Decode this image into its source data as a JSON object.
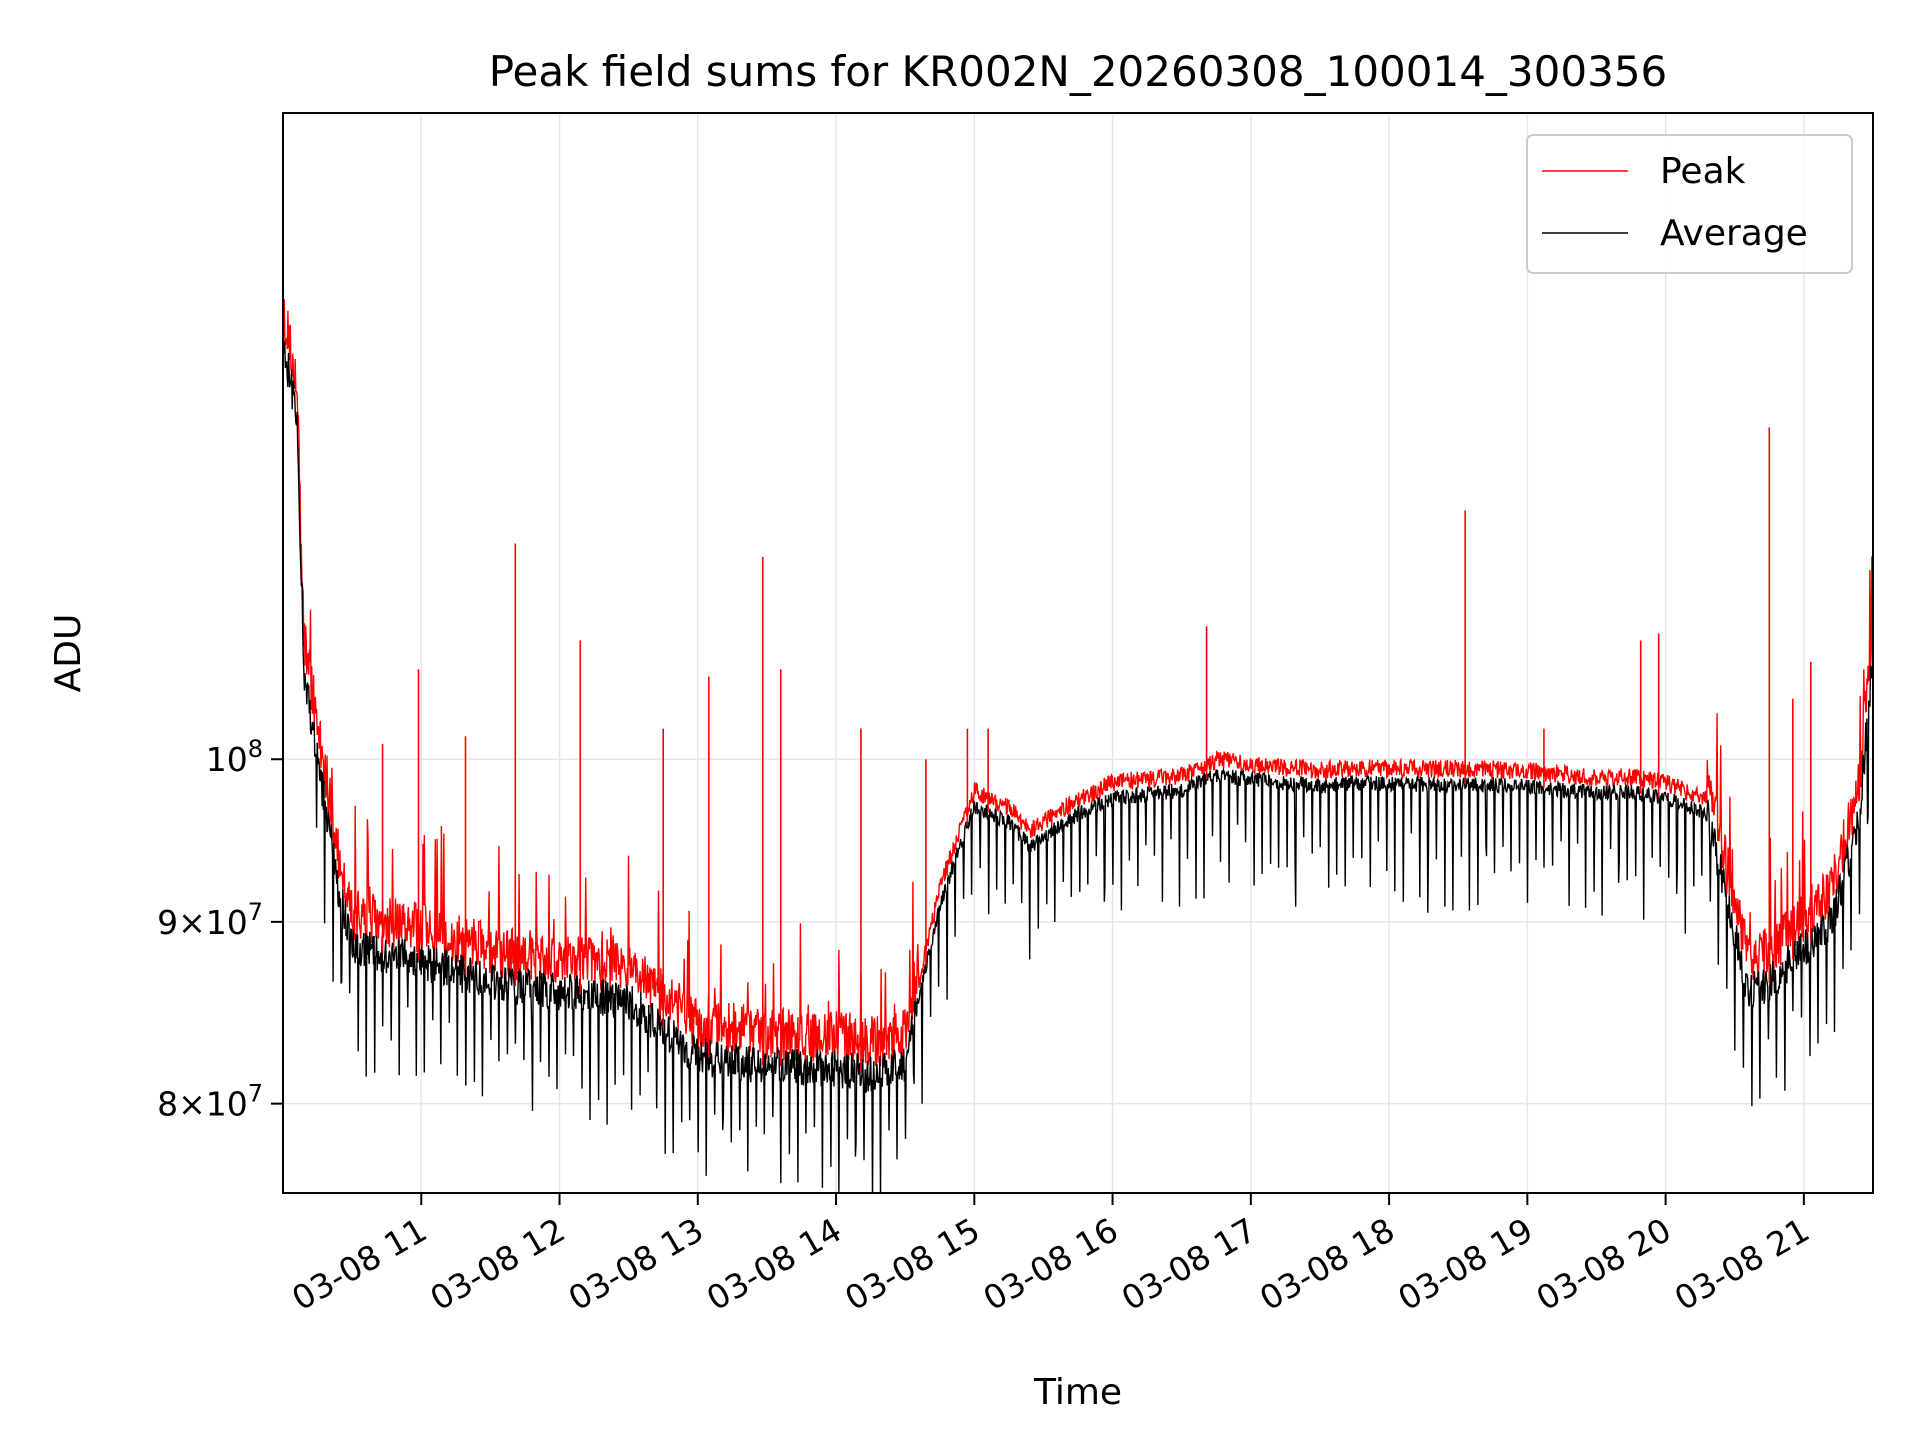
{
  "chart_data": {
    "type": "line",
    "title": "Peak field sums for KR002N_20260308_100014_300356",
    "xlabel": "Time",
    "ylabel": "ADU",
    "yscale": "log",
    "ylim": [
      75500000,
      152000000
    ],
    "xlim_hours": [
      10.0,
      21.5
    ],
    "grid": true,
    "x_ticks": [
      {
        "hour": 11,
        "label": "03-08 11"
      },
      {
        "hour": 12,
        "label": "03-08 12"
      },
      {
        "hour": 13,
        "label": "03-08 13"
      },
      {
        "hour": 14,
        "label": "03-08 14"
      },
      {
        "hour": 15,
        "label": "03-08 15"
      },
      {
        "hour": 16,
        "label": "03-08 16"
      },
      {
        "hour": 17,
        "label": "03-08 17"
      },
      {
        "hour": 18,
        "label": "03-08 18"
      },
      {
        "hour": 19,
        "label": "03-08 19"
      },
      {
        "hour": 20,
        "label": "03-08 20"
      },
      {
        "hour": 21,
        "label": "03-08 21"
      }
    ],
    "y_ticks": [
      {
        "value": 80000000,
        "mantissa": "8",
        "exp": "7",
        "sep": "×10"
      },
      {
        "value": 90000000,
        "mantissa": "9",
        "exp": "7",
        "sep": "×10"
      },
      {
        "value": 100000000,
        "mantissa": "",
        "exp": "8",
        "sep": "10"
      }
    ],
    "legend": {
      "placement": "top-right",
      "entries": [
        {
          "name": "Peak",
          "color": "#ff0000"
        },
        {
          "name": "Average",
          "color": "#000000"
        }
      ]
    },
    "baseline_hours": [
      10.0,
      10.1,
      10.15,
      10.25,
      10.4,
      10.5,
      11.0,
      11.5,
      12.0,
      12.5,
      12.75,
      13.0,
      13.5,
      14.0,
      14.3,
      14.5,
      14.75,
      15.0,
      15.25,
      15.4,
      15.75,
      16.0,
      16.5,
      16.75,
      17.0,
      17.5,
      17.75,
      18.0,
      18.5,
      19.0,
      19.5,
      19.75,
      20.0,
      20.3,
      20.45,
      20.6,
      20.75,
      21.0,
      21.2,
      21.4,
      21.5
    ],
    "baseline_values": [
      131000000,
      125000000,
      106000000,
      100000000,
      92000000,
      88500000,
      87800000,
      86500000,
      86000000,
      85500000,
      84000000,
      82500000,
      82000000,
      81800000,
      81500000,
      82200000,
      91000000,
      97000000,
      96000000,
      94500000,
      96500000,
      97500000,
      98000000,
      99000000,
      98700000,
      98300000,
      98500000,
      98400000,
      98400000,
      98300000,
      97800000,
      97900000,
      97500000,
      96500000,
      91000000,
      86000000,
      86500000,
      88500000,
      90000000,
      96000000,
      107000000
    ],
    "average_dips": {
      "period_hours": 0.06,
      "min_depth_fraction": 0.03,
      "max_depth_fraction": 0.08
    },
    "peak_spikes": [
      {
        "hour": 10.72,
        "value": 101000000
      },
      {
        "hour": 10.98,
        "value": 106000000
      },
      {
        "hour": 11.32,
        "value": 101500000
      },
      {
        "hour": 11.68,
        "value": 115000000
      },
      {
        "hour": 12.15,
        "value": 108000000
      },
      {
        "hour": 12.75,
        "value": 102000000
      },
      {
        "hour": 13.08,
        "value": 105500000
      },
      {
        "hour": 13.47,
        "value": 114000000
      },
      {
        "hour": 13.6,
        "value": 106000000
      },
      {
        "hour": 14.18,
        "value": 102000000
      },
      {
        "hour": 14.65,
        "value": 100000000
      },
      {
        "hour": 14.95,
        "value": 102000000
      },
      {
        "hour": 15.1,
        "value": 102000000
      },
      {
        "hour": 16.68,
        "value": 109000000
      },
      {
        "hour": 18.55,
        "value": 117500000
      },
      {
        "hour": 19.12,
        "value": 102000000
      },
      {
        "hour": 19.82,
        "value": 108000000
      },
      {
        "hour": 19.95,
        "value": 108500000
      },
      {
        "hour": 20.75,
        "value": 124000000
      },
      {
        "hour": 20.92,
        "value": 104000000
      },
      {
        "hour": 21.05,
        "value": 106500000
      }
    ]
  }
}
